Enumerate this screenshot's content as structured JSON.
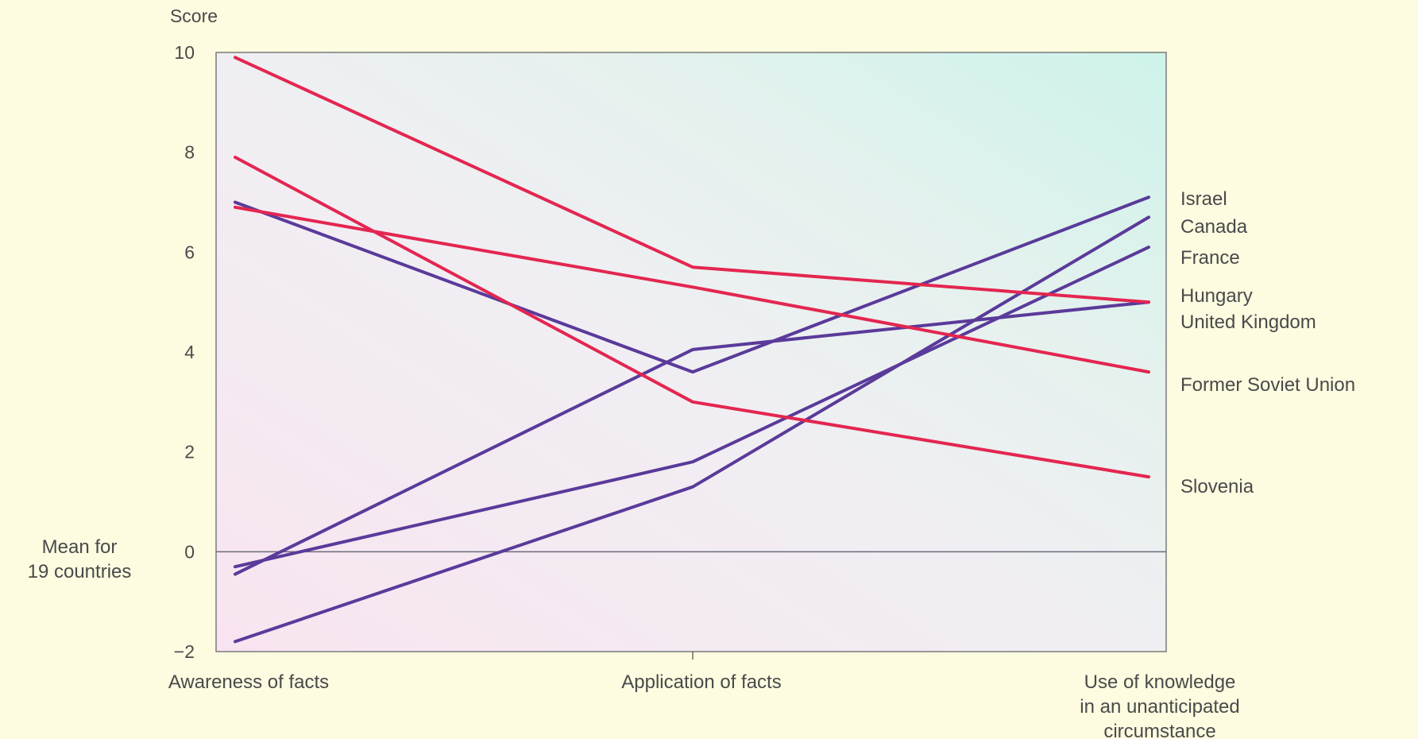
{
  "chart_data": {
    "type": "line",
    "ylabel": "Score",
    "xlabel": "",
    "ylim": [
      -2,
      10
    ],
    "yticks": [
      10,
      8,
      6,
      4,
      2,
      0,
      -2
    ],
    "yticks_labels": [
      "10",
      "8",
      "6",
      "4",
      "2",
      "0",
      "−2"
    ],
    "categories": [
      [
        "Awareness of facts"
      ],
      [
        "Application of facts"
      ],
      [
        "Use of knowledge",
        "in an unanticipated",
        "circumstance"
      ]
    ],
    "reference_line": {
      "value": 0,
      "label": [
        "Mean for",
        "19 countries"
      ]
    },
    "grid": false,
    "colors": {
      "red": "#e32650",
      "purple": "#5a3a9a",
      "plot_bg_left": "#f4eef2",
      "plot_bg_top_right": "#d6f3ec",
      "plot_bg_bottom": "#f6e9f2",
      "page_bg": "#fdfbe0"
    },
    "series": [
      {
        "values": [
          7.0,
          3.6,
          7.1
        ],
        "color": "purple"
      },
      {
        "values": [
          -1.8,
          1.3,
          6.7
        ],
        "color": "purple"
      },
      {
        "values": [
          -0.3,
          1.8,
          6.1
        ],
        "color": "purple"
      },
      {
        "values": [
          -0.45,
          4.05,
          5.0
        ],
        "color": "purple"
      },
      {
        "values": [
          9.9,
          5.7,
          5.0
        ],
        "color": "red"
      },
      {
        "values": [
          6.9,
          5.3,
          3.6
        ],
        "color": "red"
      },
      {
        "values": [
          7.9,
          3.0,
          1.5
        ],
        "color": "red"
      }
    ],
    "series_labels": [
      "Israel",
      "Canada",
      "France",
      "Hungary",
      "United Kingdom",
      "Former Soviet Union",
      "Slovenia"
    ]
  }
}
